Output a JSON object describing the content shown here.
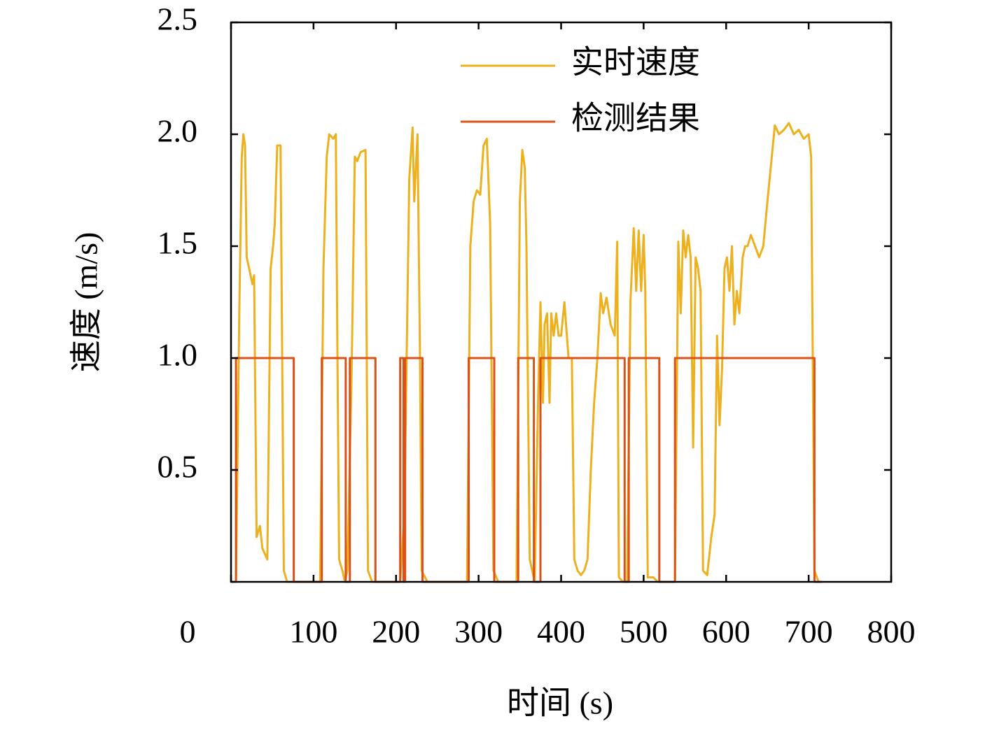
{
  "chart_data": {
    "type": "line",
    "xlabel": "时间 (s)",
    "ylabel": "速度 (m/s)",
    "xlim": [
      0,
      800
    ],
    "xticks": [
      0,
      100,
      200,
      300,
      400,
      500,
      600,
      700,
      800
    ],
    "ylim": [
      0,
      2.5
    ],
    "yticks": [
      0.5,
      {
        "value": 1,
        "label": "1.0"
      },
      1.5,
      {
        "value": 2,
        "label": "2.0"
      },
      2.5
    ],
    "legend": "upper right",
    "series": [
      {
        "name": "实时速度",
        "color": "#EDB120",
        "x": [
          0,
          6,
          10,
          13,
          15,
          17,
          19,
          22,
          26,
          28,
          31,
          35,
          38,
          44,
          48,
          51,
          53,
          56,
          60,
          62,
          64,
          68,
          108,
          112,
          116,
          119,
          124,
          127,
          129,
          131,
          135,
          138,
          141,
          146,
          150,
          153,
          157,
          163,
          166,
          171,
          205,
          210,
          216,
          220,
          222,
          226,
          229,
          231,
          238,
          286,
          290,
          294,
          298,
          302,
          306,
          310,
          314,
          318,
          324,
          346,
          350,
          353,
          356,
          358,
          362,
          368,
          372,
          375,
          378,
          380,
          383,
          386,
          388,
          391,
          394,
          397,
          400,
          404,
          406,
          409,
          413,
          416,
          420,
          424,
          428,
          432,
          436,
          440,
          444,
          448,
          451,
          455,
          460,
          465,
          468,
          470,
          475,
          480,
          484,
          488,
          491,
          494,
          497,
          500,
          502,
          505,
          512,
          517,
          538,
          542,
          545,
          548,
          551,
          554,
          557,
          560,
          563,
          566,
          569,
          572,
          577,
          582,
          586,
          589,
          592,
          595,
          598,
          601,
          604,
          607,
          610,
          613,
          616,
          620,
          623,
          626,
          630,
          635,
          640,
          645,
          650,
          654,
          659,
          664,
          670,
          676,
          682,
          688,
          694,
          700,
          703,
          707,
          712,
          716
        ],
        "values": [
          0,
          0,
          1.2,
          1.9,
          2.0,
          1.95,
          1.45,
          1.4,
          1.33,
          1.37,
          0.2,
          0.25,
          0.15,
          0.1,
          1.4,
          1.5,
          1.6,
          1.95,
          1.95,
          1.0,
          0.05,
          0,
          0,
          1.4,
          1.9,
          2.0,
          1.98,
          2.0,
          1.0,
          0.1,
          0.05,
          0,
          0.05,
          0.9,
          1.9,
          1.88,
          1.92,
          1.93,
          0.05,
          0,
          0,
          0.3,
          1.8,
          2.03,
          1.7,
          2.0,
          1.0,
          0.05,
          0,
          0,
          1.5,
          1.7,
          1.75,
          1.73,
          1.95,
          1.98,
          1.6,
          0.05,
          0,
          0,
          1.7,
          1.93,
          1.85,
          1.5,
          0.1,
          0,
          0.8,
          1.25,
          0.8,
          1.15,
          1.2,
          0.8,
          1.2,
          1.1,
          1.2,
          1.1,
          1.1,
          1.25,
          1.15,
          1.0,
          1.0,
          0.1,
          0.05,
          0.03,
          0.05,
          0.1,
          0.5,
          0.8,
          1.0,
          1.29,
          1.2,
          1.27,
          1.15,
          1.1,
          1.52,
          0.02,
          0,
          0,
          1.25,
          1.58,
          1.3,
          1.57,
          1.3,
          1.55,
          1.3,
          0.02,
          0.02,
          0,
          0,
          1.52,
          1.2,
          1.57,
          1.45,
          1.55,
          1.45,
          0.6,
          1.45,
          1.4,
          1.3,
          0.05,
          0.03,
          0.2,
          0.3,
          1.1,
          0.7,
          0.95,
          1.4,
          1.45,
          1.3,
          1.5,
          1.15,
          1.3,
          1.2,
          1.45,
          1.5,
          1.5,
          1.55,
          1.5,
          1.45,
          1.5,
          1.7,
          1.85,
          2.04,
          2.0,
          2.02,
          2.05,
          2.0,
          2.02,
          1.98,
          2.0,
          1.9,
          0.05,
          0,
          0
        ]
      },
      {
        "name": "检测结果",
        "color": "#D95319",
        "x": [
          0,
          6,
          6,
          76,
          76,
          110,
          110,
          139,
          139,
          144,
          144,
          175,
          175,
          205,
          205,
          209,
          209,
          211,
          211,
          232,
          232,
          288,
          288,
          319,
          319,
          348,
          348,
          367,
          367,
          375,
          375,
          477,
          477,
          482,
          482,
          519,
          519,
          538,
          538,
          707,
          707,
          716
        ],
        "values": [
          0,
          0,
          1,
          1,
          0,
          0,
          1,
          1,
          0,
          0,
          1,
          1,
          0,
          0,
          1,
          1,
          0,
          0,
          1,
          1,
          0,
          0,
          1,
          1,
          0,
          0,
          1,
          1,
          0,
          0,
          1,
          1,
          0,
          0,
          1,
          1,
          0,
          0,
          1,
          1,
          0,
          0
        ]
      }
    ]
  }
}
